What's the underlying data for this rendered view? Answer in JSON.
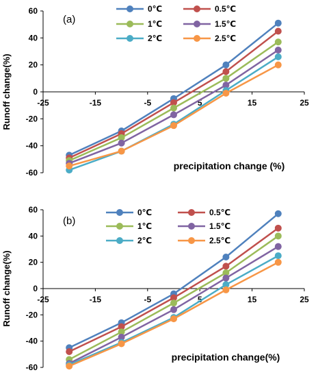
{
  "chart_data": [
    {
      "type": "line",
      "panel_label": "(a)",
      "xlabel": "precipitation change (%)",
      "ylabel": "Runoff change(%)",
      "xlim": [
        -25,
        25
      ],
      "ylim": [
        -60,
        60
      ],
      "x_ticks": [
        "-25",
        "-15",
        "-5",
        "5",
        "15",
        "25"
      ],
      "y_ticks": [
        "60",
        "40",
        "20",
        "0",
        "-20",
        "-40",
        "-60"
      ],
      "grid": false,
      "legend_position": "top",
      "x": [
        -20,
        -10,
        0,
        10,
        20
      ],
      "series": [
        {
          "name": "0℃",
          "color": "#4f81bd",
          "values": [
            -47,
            -29,
            -5,
            20,
            51
          ]
        },
        {
          "name": "0.5℃",
          "color": "#c0504d",
          "values": [
            -49,
            -31,
            -8,
            15,
            45
          ]
        },
        {
          "name": "1℃",
          "color": "#9bbb59",
          "values": [
            -51,
            -34,
            -12,
            10,
            37
          ]
        },
        {
          "name": "1.5℃",
          "color": "#8064a2",
          "values": [
            -53,
            -38,
            -17,
            5,
            31
          ]
        },
        {
          "name": "2℃",
          "color": "#4bacc6",
          "values": [
            -58,
            -44,
            -24,
            1,
            26
          ]
        },
        {
          "name": "2.5℃",
          "color": "#f79646",
          "values": [
            -55,
            -44,
            -25,
            -1,
            20
          ]
        }
      ]
    },
    {
      "type": "line",
      "panel_label": "(b)",
      "xlabel": "precipitation change(%)",
      "ylabel": "Runoff change(%)",
      "xlim": [
        -25,
        25
      ],
      "ylim": [
        -60,
        60
      ],
      "x_ticks": [
        "-25",
        "-15",
        "-5",
        "5",
        "15",
        "25"
      ],
      "y_ticks": [
        "60",
        "40",
        "20",
        "0",
        "-20",
        "-40",
        "-60"
      ],
      "grid": false,
      "legend_position": "top",
      "x": [
        -20,
        -10,
        0,
        10,
        20
      ],
      "series": [
        {
          "name": "0℃",
          "color": "#4f81bd",
          "values": [
            -45,
            -26,
            -4,
            24,
            57
          ]
        },
        {
          "name": "0.5℃",
          "color": "#c0504d",
          "values": [
            -48,
            -29,
            -7,
            17,
            46
          ]
        },
        {
          "name": "1℃",
          "color": "#9bbb59",
          "values": [
            -54,
            -33,
            -11,
            12,
            40
          ]
        },
        {
          "name": "1.5℃",
          "color": "#8064a2",
          "values": [
            -57,
            -37,
            -16,
            8,
            32
          ]
        },
        {
          "name": "2℃",
          "color": "#4bacc6",
          "values": [
            -58,
            -41,
            -22,
            3,
            25
          ]
        },
        {
          "name": "2.5℃",
          "color": "#f79646",
          "values": [
            -59,
            -42,
            -23,
            -1,
            20
          ]
        }
      ]
    }
  ]
}
